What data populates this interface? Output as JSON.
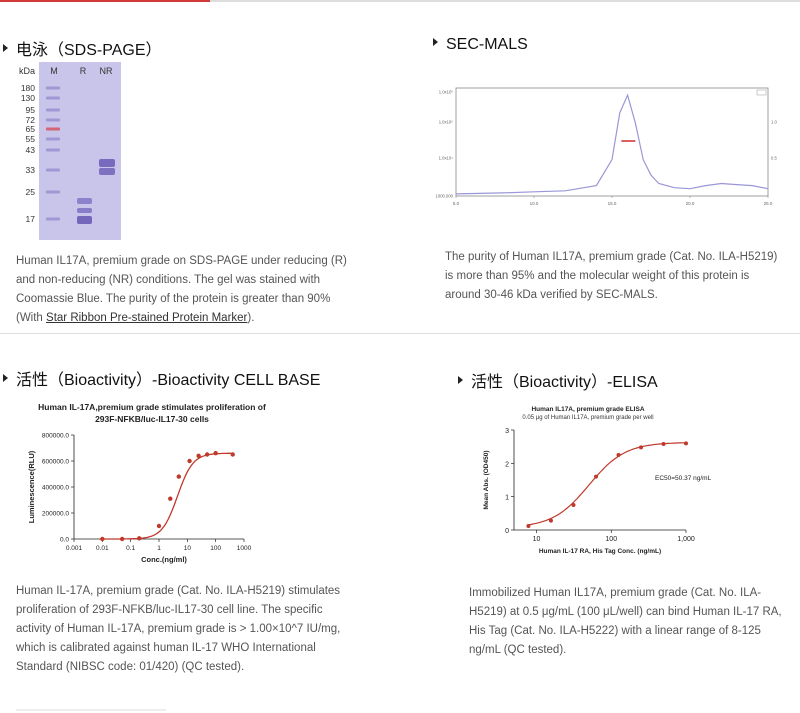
{
  "sections": {
    "sds": {
      "title": "电泳（SDS-PAGE）",
      "desc_pre": "Human IL17A, premium grade on SDS-PAGE under reducing (R) and non-reducing (NR) conditions. The gel was stained with Coomassie Blue. The purity of the protein is greater than 90% (With ",
      "desc_link": "Star Ribbon Pre-stained Protein Marker",
      "desc_post": ")."
    },
    "secmals": {
      "title": "SEC-MALS",
      "desc": "The purity of Human IL17A, premium grade (Cat. No. ILA-H5219) is more than 95% and the molecular weight of this protein is around 30-46 kDa verified by SEC-MALS."
    },
    "cellbase": {
      "title": "活性（Bioactivity）-Bioactivity CELL BASE",
      "desc": "Human IL-17A, premium grade (Cat. No. ILA-H5219) stimulates proliferation of 293F-NFKB/luc-IL17-30 cell line. The specific activity of Human IL-17A, premium grade is > 1.00×10^7 IU/mg, which is calibrated against human IL-17 WHO International Standard (NIBSC code: 01/420) (QC tested)."
    },
    "elisa": {
      "title": "活性（Bioactivity）-ELISA",
      "desc": "Immobilized Human IL17A, premium grade (Cat. No. ILA-H5219) at 0.5 μg/mL (100 μL/well) can bind Human IL-17 RA, His Tag (Cat. No. ILA-H5222) with a linear range of 8-125 ng/mL (QC tested)."
    }
  },
  "gel": {
    "lane_labels": [
      "kDa",
      "M",
      "R",
      "NR"
    ],
    "markers": [
      "180",
      "130",
      "95",
      "72",
      "65",
      "55",
      "43",
      "33",
      "25",
      "17"
    ],
    "colors": {
      "background": "#c9c5ea",
      "band": "#6a5bb5",
      "marker_red": "#d45a6a"
    }
  },
  "chart_data": [
    {
      "type": "line",
      "name": "SEC-MALS",
      "x": [
        5,
        8,
        10,
        12,
        14,
        15,
        15.5,
        16,
        16.5,
        17,
        17.5,
        18,
        19,
        20,
        21,
        22,
        23,
        24,
        25
      ],
      "values": [
        0.02,
        0.03,
        0.04,
        0.05,
        0.1,
        0.35,
        0.8,
        0.97,
        0.7,
        0.35,
        0.2,
        0.12,
        0.08,
        0.07,
        0.1,
        0.12,
        0.11,
        0.1,
        0.07
      ],
      "xticks": [
        "5.0",
        "10.0",
        "15.0",
        "20.0",
        "25.0"
      ],
      "yticks_left": [
        "1.0x10⁶",
        "1.0x10⁵",
        "1.0x10⁴",
        "1000.000"
      ],
      "yticks_right": [
        "1.0",
        "0.5"
      ],
      "colors": {
        "trace": "#9a96d8",
        "mw": "#d23a3a"
      }
    },
    {
      "type": "scatter",
      "name": "Cell based",
      "title": "Human IL-17A,premium grade stimulates proliferation of 293F-NFKB/luc-IL17-30 cells",
      "title_line1": "Human IL-17A,premium grade stimulates proliferation of",
      "title_line2": "293F-NFKB/luc-IL17-30 cells",
      "xlabel": "Conc.(ng/ml)",
      "ylabel": "Luminescence(RLU)",
      "xscale": "log",
      "xlim": [
        0.001,
        1000
      ],
      "ylim": [
        0,
        800000
      ],
      "xticks": [
        "0.001",
        "0.01",
        "0.1",
        "1",
        "10",
        "100",
        "1000"
      ],
      "yticks": [
        "0.0",
        "200000.0",
        "400000.0",
        "600000.0",
        "800000.0"
      ],
      "x": [
        0.01,
        0.05,
        0.2,
        1,
        2.5,
        5,
        12,
        25,
        50,
        100,
        400
      ],
      "y": [
        0,
        0,
        5000,
        100000,
        310000,
        480000,
        600000,
        640000,
        650000,
        660000,
        650000
      ],
      "fit": {
        "bottom": 0,
        "top": 660000,
        "ec50": 4.5,
        "hill": 1.6
      },
      "colors": {
        "marker": "#c0392b",
        "line": "#c0392b"
      }
    },
    {
      "type": "scatter",
      "name": "ELISA",
      "title": "Human IL17A, premium grade ELISA",
      "subtitle": "0.05 μg of Human IL17A, premium grade per well",
      "xlabel": "Human IL-17 RA, His Tag Conc. (ng/mL)",
      "ylabel": "Mean Abs. (OD450)",
      "xscale": "log",
      "xlim": [
        5,
        1000
      ],
      "ylim": [
        0,
        3
      ],
      "xticks": [
        "10",
        "100",
        "1,000"
      ],
      "yticks": [
        "0",
        "1",
        "2",
        "3"
      ],
      "x": [
        7.8,
        15.6,
        31.25,
        62.5,
        125,
        250,
        500,
        1000
      ],
      "y": [
        0.12,
        0.28,
        0.75,
        1.6,
        2.25,
        2.48,
        2.58,
        2.6
      ],
      "fit": {
        "bottom": 0.07,
        "top": 2.63,
        "ec50": 50.37,
        "hill": 1.8
      },
      "annotation": "EC50=50.37 ng/mL",
      "colors": {
        "marker": "#c0392b",
        "line": "#c0392b"
      }
    }
  ]
}
